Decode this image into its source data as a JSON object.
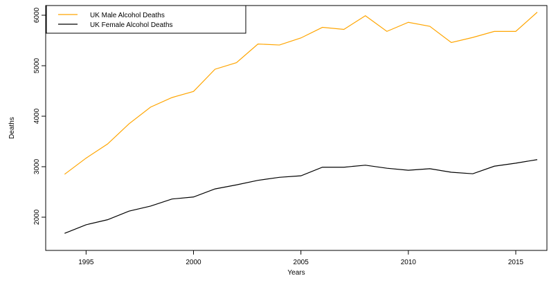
{
  "chart_data": {
    "type": "line",
    "x": [
      1994,
      1995,
      1996,
      1997,
      1998,
      1999,
      2000,
      2001,
      2002,
      2003,
      2004,
      2005,
      2006,
      2007,
      2008,
      2009,
      2010,
      2011,
      2012,
      2013,
      2014,
      2015,
      2016
    ],
    "series": [
      {
        "name": "UK Male Alcohol Deaths",
        "color": "#ffa500",
        "values": [
          2850,
          3170,
          3450,
          3850,
          4180,
          4370,
          4490,
          4930,
          5060,
          5430,
          5410,
          5550,
          5760,
          5720,
          5990,
          5680,
          5860,
          5780,
          5460,
          5560,
          5680,
          5680,
          6060
        ]
      },
      {
        "name": "UK Female Alcohol Deaths",
        "color": "#000000",
        "values": [
          1680,
          1850,
          1950,
          2120,
          2220,
          2360,
          2400,
          2560,
          2640,
          2730,
          2790,
          2820,
          2990,
          2990,
          3030,
          2970,
          2930,
          2960,
          2890,
          2860,
          3010,
          3070,
          3140
        ]
      }
    ],
    "xlabel": "Years",
    "ylabel": "Deaths",
    "xlim": [
      1993.12,
      2016.45
    ],
    "ylim": [
      1342,
      6192
    ],
    "xticks": [
      1995,
      2000,
      2005,
      2010,
      2015
    ],
    "yticks": [
      2000,
      3000,
      4000,
      5000,
      6000
    ],
    "legend": "top-left"
  }
}
